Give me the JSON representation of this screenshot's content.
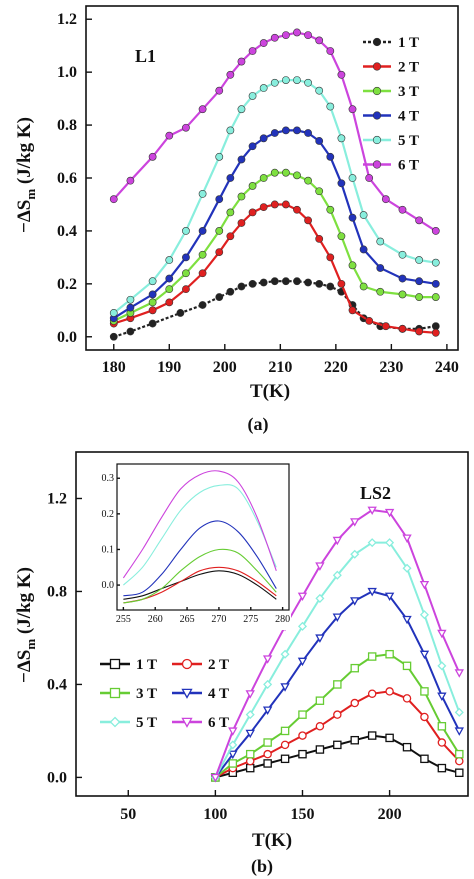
{
  "chart_data": [
    {
      "panel": "a",
      "type": "line",
      "caption": "(a)",
      "annotation": "L1",
      "xlabel": "T(K)",
      "ylabel_main": "−ΔS",
      "ylabel_sub": "m",
      "ylabel_rest": " (J/kg K)",
      "xlim": [
        175,
        242
      ],
      "ylim": [
        -0.05,
        1.25
      ],
      "xticks": [
        180,
        190,
        200,
        210,
        220,
        230,
        240
      ],
      "yticks": [
        0.0,
        0.2,
        0.4,
        0.6,
        0.8,
        1.0,
        1.2
      ],
      "ytick_labels": [
        "0.0",
        "0.2",
        "0.4",
        "0.6",
        "0.8",
        "1.0",
        "1.2"
      ],
      "legend_position": "top-right",
      "series": [
        {
          "name": "1 T",
          "color": "#222222",
          "marker": "filled-circle",
          "dashed": true,
          "x": [
            180,
            183,
            187,
            192,
            196,
            199,
            201,
            203,
            205,
            207,
            209,
            211,
            213,
            215,
            217,
            219,
            221,
            223,
            225,
            228,
            232,
            235,
            238
          ],
          "y": [
            0.0,
            0.02,
            0.05,
            0.09,
            0.12,
            0.15,
            0.17,
            0.19,
            0.2,
            0.205,
            0.21,
            0.21,
            0.21,
            0.205,
            0.2,
            0.19,
            0.17,
            0.12,
            0.07,
            0.04,
            0.03,
            0.03,
            0.04
          ]
        },
        {
          "name": "2 T",
          "color": "#e02020",
          "marker": "filled-circle",
          "x": [
            180,
            183,
            187,
            190,
            193,
            196,
            199,
            201,
            203,
            205,
            207,
            209,
            211,
            213,
            215,
            217,
            219,
            221,
            223,
            226,
            229,
            232,
            235,
            238
          ],
          "y": [
            0.05,
            0.07,
            0.1,
            0.13,
            0.18,
            0.24,
            0.32,
            0.38,
            0.43,
            0.47,
            0.49,
            0.5,
            0.5,
            0.48,
            0.44,
            0.37,
            0.3,
            0.2,
            0.1,
            0.06,
            0.04,
            0.03,
            0.02,
            0.015
          ]
        },
        {
          "name": "3 T",
          "color": "#7ee040",
          "marker": "filled-circle",
          "x": [
            180,
            183,
            187,
            190,
            193,
            196,
            199,
            201,
            203,
            205,
            207,
            209,
            211,
            213,
            215,
            217,
            219,
            221,
            223,
            225,
            228,
            232,
            235,
            238
          ],
          "y": [
            0.06,
            0.09,
            0.13,
            0.18,
            0.24,
            0.31,
            0.4,
            0.47,
            0.53,
            0.57,
            0.6,
            0.62,
            0.62,
            0.61,
            0.59,
            0.55,
            0.48,
            0.38,
            0.27,
            0.19,
            0.17,
            0.16,
            0.15,
            0.15
          ]
        },
        {
          "name": "4 T",
          "color": "#2233bb",
          "marker": "filled-circle",
          "x": [
            180,
            183,
            187,
            190,
            193,
            196,
            199,
            201,
            203,
            205,
            207,
            209,
            211,
            213,
            215,
            217,
            219,
            221,
            223,
            225,
            228,
            232,
            235,
            238
          ],
          "y": [
            0.07,
            0.11,
            0.16,
            0.22,
            0.3,
            0.4,
            0.52,
            0.6,
            0.67,
            0.72,
            0.75,
            0.77,
            0.78,
            0.78,
            0.77,
            0.74,
            0.68,
            0.58,
            0.45,
            0.33,
            0.26,
            0.22,
            0.21,
            0.2
          ]
        },
        {
          "name": "5 T",
          "color": "#88eedd",
          "marker": "filled-circle",
          "x": [
            180,
            183,
            187,
            190,
            193,
            196,
            199,
            201,
            203,
            205,
            207,
            209,
            211,
            213,
            215,
            217,
            219,
            221,
            223,
            225,
            228,
            232,
            235,
            238
          ],
          "y": [
            0.09,
            0.14,
            0.21,
            0.29,
            0.4,
            0.54,
            0.68,
            0.78,
            0.86,
            0.91,
            0.94,
            0.96,
            0.97,
            0.97,
            0.96,
            0.93,
            0.87,
            0.75,
            0.6,
            0.46,
            0.36,
            0.31,
            0.29,
            0.28
          ]
        },
        {
          "name": "6 T",
          "color": "#cc44dd",
          "marker": "filled-circle",
          "x": [
            180,
            183,
            187,
            190,
            193,
            196,
            199,
            201,
            203,
            205,
            207,
            209,
            211,
            213,
            215,
            217,
            219,
            221,
            223,
            226,
            229,
            232,
            235,
            238
          ],
          "y": [
            0.52,
            0.59,
            0.68,
            0.76,
            0.79,
            0.86,
            0.93,
            0.99,
            1.04,
            1.08,
            1.11,
            1.13,
            1.14,
            1.15,
            1.14,
            1.12,
            1.08,
            0.99,
            0.86,
            0.6,
            0.52,
            0.48,
            0.44,
            0.4
          ]
        }
      ]
    },
    {
      "panel": "b",
      "type": "line",
      "caption": "(b)",
      "annotation": "LS2",
      "xlabel": "T(K)",
      "ylabel_main": "−ΔS",
      "ylabel_sub": "m",
      "ylabel_rest": " (J/kg K)",
      "xlim": [
        20,
        245
      ],
      "ylim": [
        -0.08,
        1.4
      ],
      "xticks": [
        50,
        100,
        150,
        200
      ],
      "yticks": [
        0.0,
        0.4,
        0.8,
        1.2
      ],
      "ytick_labels": [
        "0.0",
        "0.4",
        "0.8",
        "1.2"
      ],
      "legend_position": "lower-left",
      "series": [
        {
          "name": "1 T",
          "color": "#111111",
          "marker": "open-square",
          "x": [
            100,
            110,
            120,
            130,
            140,
            150,
            160,
            170,
            180,
            190,
            200,
            210,
            220,
            230,
            240
          ],
          "y": [
            0.0,
            0.02,
            0.04,
            0.06,
            0.08,
            0.1,
            0.12,
            0.14,
            0.16,
            0.18,
            0.17,
            0.13,
            0.08,
            0.04,
            0.02
          ]
        },
        {
          "name": "2 T",
          "color": "#e02020",
          "marker": "open-circle",
          "x": [
            100,
            110,
            120,
            130,
            140,
            150,
            160,
            170,
            180,
            190,
            200,
            210,
            220,
            230,
            240
          ],
          "y": [
            0.0,
            0.04,
            0.07,
            0.1,
            0.14,
            0.18,
            0.22,
            0.27,
            0.32,
            0.36,
            0.37,
            0.34,
            0.26,
            0.15,
            0.07
          ]
        },
        {
          "name": "3 T",
          "color": "#66cc33",
          "marker": "open-square",
          "x": [
            100,
            110,
            120,
            130,
            140,
            150,
            160,
            170,
            180,
            190,
            200,
            210,
            220,
            230,
            240
          ],
          "y": [
            0.0,
            0.06,
            0.1,
            0.15,
            0.2,
            0.27,
            0.33,
            0.4,
            0.47,
            0.52,
            0.53,
            0.48,
            0.37,
            0.22,
            0.1
          ]
        },
        {
          "name": "4 T",
          "color": "#2233bb",
          "marker": "open-triangle-down",
          "x": [
            100,
            110,
            120,
            130,
            140,
            150,
            160,
            170,
            180,
            190,
            200,
            210,
            220,
            230,
            240
          ],
          "y": [
            0.0,
            0.1,
            0.19,
            0.29,
            0.39,
            0.5,
            0.6,
            0.69,
            0.76,
            0.8,
            0.78,
            0.68,
            0.53,
            0.35,
            0.2
          ]
        },
        {
          "name": "5 T",
          "color": "#88eedd",
          "marker": "open-diamond",
          "x": [
            100,
            110,
            120,
            130,
            140,
            150,
            160,
            170,
            180,
            190,
            200,
            210,
            220,
            230,
            240
          ],
          "y": [
            0.0,
            0.14,
            0.27,
            0.4,
            0.53,
            0.65,
            0.77,
            0.87,
            0.96,
            1.01,
            1.01,
            0.9,
            0.7,
            0.48,
            0.28
          ]
        },
        {
          "name": "6 T",
          "color": "#cc44dd",
          "marker": "open-triangle-down",
          "x": [
            100,
            110,
            120,
            130,
            140,
            150,
            160,
            170,
            180,
            190,
            200,
            210,
            220,
            230,
            240
          ],
          "y": [
            0.0,
            0.2,
            0.36,
            0.51,
            0.65,
            0.78,
            0.91,
            1.02,
            1.1,
            1.15,
            1.14,
            1.03,
            0.83,
            0.62,
            0.45
          ]
        }
      ],
      "inset": {
        "type": "line",
        "xlim": [
          254,
          281
        ],
        "ylim": [
          -0.07,
          0.34
        ],
        "xticks": [
          255,
          260,
          265,
          270,
          275,
          280
        ],
        "yticks": [
          0.0,
          0.1,
          0.2,
          0.3
        ],
        "ytick_labels": [
          "0.0",
          "0.1",
          "0.2",
          "0.3"
        ],
        "series": [
          {
            "color": "#111111",
            "x": [
              255,
              258,
              261,
              264,
              267,
              270,
              273,
              276,
              279
            ],
            "y": [
              -0.04,
              -0.03,
              -0.01,
              0.01,
              0.03,
              0.04,
              0.03,
              0.0,
              -0.04
            ]
          },
          {
            "color": "#e02020",
            "x": [
              255,
              258,
              261,
              264,
              267,
              270,
              273,
              276,
              279
            ],
            "y": [
              -0.05,
              -0.04,
              -0.02,
              0.01,
              0.04,
              0.05,
              0.04,
              0.01,
              -0.03
            ]
          },
          {
            "color": "#66cc33",
            "x": [
              255,
              258,
              261,
              264,
              267,
              270,
              273,
              276,
              279
            ],
            "y": [
              -0.05,
              -0.04,
              -0.01,
              0.04,
              0.08,
              0.1,
              0.09,
              0.04,
              -0.02
            ]
          },
          {
            "color": "#2233bb",
            "x": [
              255,
              258,
              261,
              264,
              267,
              270,
              273,
              276,
              279
            ],
            "y": [
              -0.03,
              -0.02,
              0.03,
              0.1,
              0.16,
              0.18,
              0.15,
              0.08,
              -0.01
            ]
          },
          {
            "color": "#88eedd",
            "x": [
              255,
              258,
              261,
              264,
              267,
              270,
              273,
              276,
              279
            ],
            "y": [
              0.0,
              0.05,
              0.13,
              0.21,
              0.26,
              0.28,
              0.27,
              0.18,
              0.05
            ]
          },
          {
            "color": "#cc44dd",
            "x": [
              255,
              258,
              261,
              264,
              267,
              270,
              273,
              276,
              279
            ],
            "y": [
              0.02,
              0.1,
              0.19,
              0.27,
              0.31,
              0.32,
              0.29,
              0.19,
              0.04
            ]
          }
        ]
      }
    }
  ]
}
